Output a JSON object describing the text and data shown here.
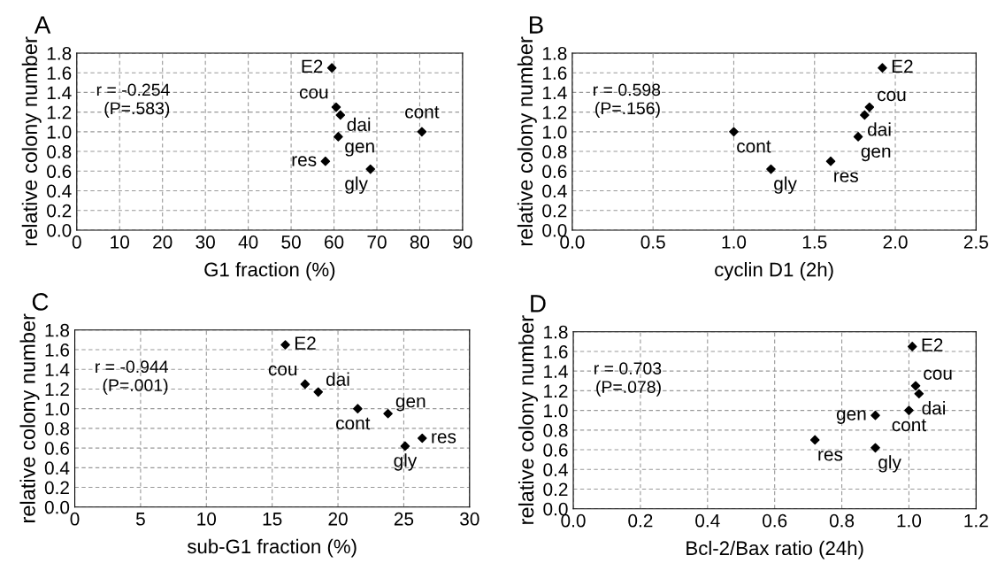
{
  "chart_data": [
    {
      "type": "scatter",
      "title": "A",
      "xlabel": "G1 fraction (%)",
      "ylabel": "relative colony number",
      "x": [
        59.5,
        60.5,
        61.5,
        80.5,
        61,
        58,
        68.5
      ],
      "series": [
        {
          "color": "#000000",
          "values": [
            1.65,
            1.25,
            1.17,
            1.0,
            0.95,
            0.7,
            0.62
          ]
        }
      ],
      "marker": "diamond",
      "grid": true,
      "xlim": [
        0,
        90
      ],
      "xticks": [
        0,
        10,
        20,
        30,
        40,
        50,
        60,
        70,
        80,
        90
      ],
      "ylim": [
        0,
        1.8
      ],
      "yticks": [
        {
          "value": 0,
          "label": "0.0"
        },
        {
          "value": 0.2,
          "label": "0.2"
        },
        {
          "value": 0.4,
          "label": "0.4"
        },
        {
          "value": 0.6,
          "label": "0.6"
        },
        {
          "value": 0.8,
          "label": "0.8"
        },
        {
          "value": 1.0,
          "label": "1.0"
        },
        {
          "value": 1.2,
          "label": "1.2"
        },
        {
          "value": 1.4,
          "label": "1.4"
        },
        {
          "value": 1.6,
          "label": "1.6"
        },
        {
          "value": 1.8,
          "label": "1.8"
        }
      ],
      "annotations": [
        "r = -0.254\n(P=.583)",
        {
          "text": "E2",
          "x": 59.5,
          "y": 1.65
        },
        {
          "text": "cou",
          "x": 60.5,
          "y": 1.25
        },
        {
          "text": "dai",
          "x": 61.5,
          "y": 1.17
        },
        {
          "text": "cont",
          "x": 80.5,
          "y": 1.0
        },
        {
          "text": "gen",
          "x": 61,
          "y": 0.95
        },
        {
          "text": "res",
          "x": 58,
          "y": 0.7
        },
        {
          "text": "gly",
          "x": 68.5,
          "y": 0.62
        }
      ]
    },
    {
      "type": "scatter",
      "title": "B",
      "xlabel": "cyclin D1 (2h)",
      "ylabel": "relative colony number",
      "x": [
        1.92,
        1.84,
        1.81,
        1.0,
        1.77,
        1.6,
        1.23
      ],
      "series": [
        {
          "color": "#000000",
          "values": [
            1.65,
            1.25,
            1.17,
            1.0,
            0.95,
            0.7,
            0.62
          ]
        }
      ],
      "marker": "diamond",
      "grid": true,
      "xlim": [
        0,
        2.5
      ],
      "xticks": [
        {
          "value": 0,
          "label": "0.0"
        },
        {
          "value": 0.5,
          "label": "0.5"
        },
        {
          "value": 1.0,
          "label": "1.0"
        },
        {
          "value": 1.5,
          "label": "1.5"
        },
        {
          "value": 2.0,
          "label": "2.0"
        },
        2.5
      ],
      "ylim": [
        0,
        1.8
      ],
      "yticks": [
        {
          "value": 0,
          "label": "0.0"
        },
        {
          "value": 0.2,
          "label": "0.2"
        },
        {
          "value": 0.4,
          "label": "0.4"
        },
        {
          "value": 0.6,
          "label": "0.6"
        },
        {
          "value": 0.8,
          "label": "0.8"
        },
        {
          "value": 1.0,
          "label": "1.0"
        },
        {
          "value": 1.2,
          "label": "1.2"
        },
        {
          "value": 1.4,
          "label": "1.4"
        },
        {
          "value": 1.6,
          "label": "1.6"
        },
        {
          "value": 1.8,
          "label": "1.8"
        }
      ],
      "annotations": [
        "r = 0.598\n(P=.156)",
        {
          "text": "E2",
          "x": 1.92,
          "y": 1.65
        },
        {
          "text": "cou",
          "x": 1.84,
          "y": 1.25
        },
        {
          "text": "dai",
          "x": 1.81,
          "y": 1.17
        },
        {
          "text": "cont",
          "x": 1.0,
          "y": 1.0
        },
        {
          "text": "gen",
          "x": 1.77,
          "y": 0.95
        },
        {
          "text": "res",
          "x": 1.6,
          "y": 0.7
        },
        {
          "text": "gly",
          "x": 1.23,
          "y": 0.62
        }
      ]
    },
    {
      "type": "scatter",
      "title": "C",
      "xlabel": "sub-G1 fraction (%)",
      "ylabel": "relative colony number",
      "x": [
        16,
        17.5,
        18.5,
        21.5,
        23.8,
        26.4,
        25.1
      ],
      "series": [
        {
          "color": "#000000",
          "values": [
            1.65,
            1.25,
            1.17,
            1.0,
            0.95,
            0.7,
            0.62
          ]
        }
      ],
      "marker": "diamond",
      "grid": true,
      "xlim": [
        0,
        30
      ],
      "xticks": [
        0,
        5,
        10,
        15,
        20,
        25,
        30
      ],
      "ylim": [
        0,
        1.8
      ],
      "yticks": [
        {
          "value": 0,
          "label": "0.0"
        },
        {
          "value": 0.2,
          "label": "0.2"
        },
        {
          "value": 0.4,
          "label": "0.4"
        },
        {
          "value": 0.6,
          "label": "0.6"
        },
        {
          "value": 0.8,
          "label": "0.8"
        },
        {
          "value": 1.0,
          "label": "1.0"
        },
        {
          "value": 1.2,
          "label": "1.2"
        },
        {
          "value": 1.4,
          "label": "1.4"
        },
        {
          "value": 1.6,
          "label": "1.6"
        },
        {
          "value": 1.8,
          "label": "1.8"
        }
      ],
      "annotations": [
        "r = -0.944\n(P=.001)",
        {
          "text": "E2",
          "x": 16,
          "y": 1.65
        },
        {
          "text": "cou",
          "x": 17.5,
          "y": 1.25
        },
        {
          "text": "dai",
          "x": 18.5,
          "y": 1.17
        },
        {
          "text": "cont",
          "x": 21.5,
          "y": 1.0
        },
        {
          "text": "gen",
          "x": 23.8,
          "y": 0.95
        },
        {
          "text": "res",
          "x": 26.4,
          "y": 0.7
        },
        {
          "text": "gly",
          "x": 25.1,
          "y": 0.62
        }
      ]
    },
    {
      "type": "scatter",
      "title": "D",
      "xlabel": "Bcl-2/Bax ratio (24h)",
      "ylabel": "relative colony number",
      "x": [
        1.01,
        1.02,
        1.03,
        1.0,
        0.9,
        0.72,
        0.9
      ],
      "series": [
        {
          "color": "#000000",
          "values": [
            1.65,
            1.25,
            1.17,
            1.0,
            0.95,
            0.7,
            0.62
          ]
        }
      ],
      "marker": "diamond",
      "grid": true,
      "xlim": [
        0,
        1.2
      ],
      "xticks": [
        {
          "value": 0,
          "label": "0.0"
        },
        {
          "value": 0.2,
          "label": "0.2"
        },
        {
          "value": 0.4,
          "label": "0.4"
        },
        {
          "value": 0.6,
          "label": "0.6"
        },
        {
          "value": 0.8,
          "label": "0.8"
        },
        {
          "value": 1.0,
          "label": "1.0"
        },
        {
          "value": 1.2,
          "label": "1.2"
        }
      ],
      "ylim": [
        0,
        1.8
      ],
      "yticks": [
        {
          "value": 0,
          "label": "0.0"
        },
        {
          "value": 0.2,
          "label": "0.2"
        },
        {
          "value": 0.4,
          "label": "0.4"
        },
        {
          "value": 0.6,
          "label": "0.6"
        },
        {
          "value": 0.8,
          "label": "0.8"
        },
        {
          "value": 1.0,
          "label": "1.0"
        },
        {
          "value": 1.2,
          "label": "1.2"
        },
        {
          "value": 1.4,
          "label": "1.4"
        },
        {
          "value": 1.6,
          "label": "1.6"
        },
        {
          "value": 1.8,
          "label": "1.8"
        }
      ],
      "annotations": [
        "r = 0.703\n(P=.078)",
        {
          "text": "E2",
          "x": 1.01,
          "y": 1.65
        },
        {
          "text": "cou",
          "x": 1.02,
          "y": 1.25
        },
        {
          "text": "dai",
          "x": 1.03,
          "y": 1.17
        },
        {
          "text": "cont",
          "x": 1.0,
          "y": 1.0
        },
        {
          "text": "gen",
          "x": 0.9,
          "y": 0.95
        },
        {
          "text": "res",
          "x": 0.72,
          "y": 0.7
        },
        {
          "text": "gly",
          "x": 0.9,
          "y": 0.62
        }
      ]
    }
  ]
}
